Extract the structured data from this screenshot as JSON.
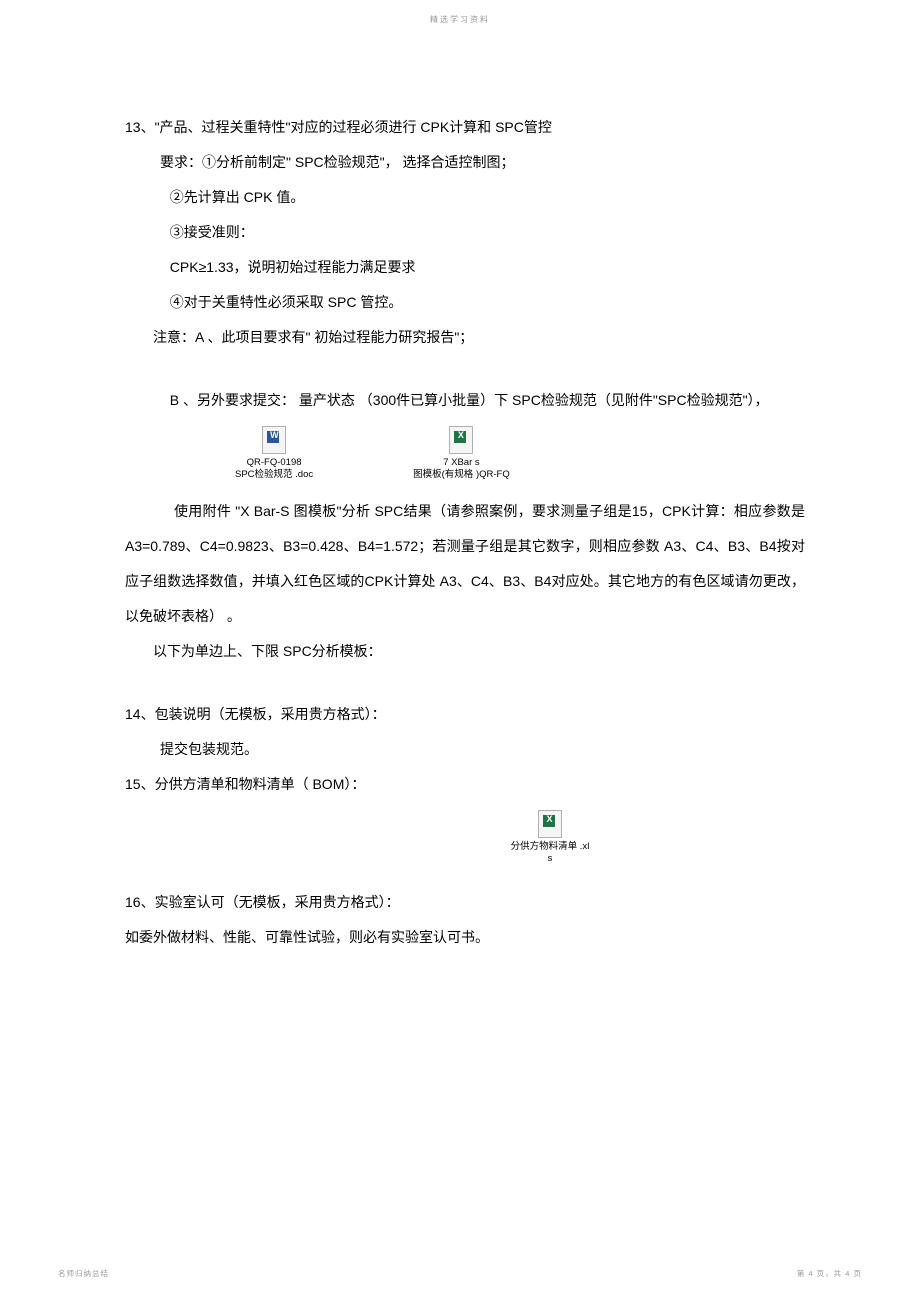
{
  "header": {
    "title": "精选学习资料"
  },
  "section13": {
    "heading": "13、\"产品、过程关重特性\"对应的过程必须进行    CPK计算和 SPC管控",
    "req1": "要求：①分析前制定\" SPC检验规范\"， 选择合适控制图；",
    "req2": "②先计算出 CPK  值。",
    "req3": "③接受准则：",
    "cpk": "CPK≥1.33，说明初始过程能力满足要求",
    "req4": "④对于关重特性必须采取  SPC 管控。",
    "noteA": "注意：A 、此项目要求有\"   初始过程能力研究报告\"；",
    "noteB": "B 、另外要求提交：  量产状态 （300件已算小批量）下  SPC检验规范（见附件\"SPC检验规范\"），",
    "attach1_line1": "QR-FQ-0198",
    "attach1_line2": "SPC检验规范 .doc",
    "attach2_line1": "7 XBar s",
    "attach2_line2": "图模板(有规格 )QR-FQ",
    "body1": "使用附件   \"X Bar-S  图模板\"分析 SPC结果（请参照案例，要求测量子组是15，CPK计算：相应参数是 A3=0.789、C4=0.9823、B3=0.428、B4=1.572；若测量子组是其它数字，则相应参数  A3、C4、B3、B4按对应子组数选择数值，并填入红色区域的CPK计算处 A3、C4、B3、B4对应处。其它地方的有色区域请勿更改，   以免破坏表格） 。",
    "body2": "以下为单边上、下限  SPC分析模板："
  },
  "section14": {
    "heading": "14、包装说明（无模板，采用贵方格式）：",
    "body": "提交包装规范。"
  },
  "section15": {
    "heading": "15、分供方清单和物料清单（   BOM）：",
    "attach_line1": "分供方物料清单 .xl",
    "attach_line2": "s"
  },
  "section16": {
    "heading": "16、实验室认可（无模板，采用贵方格式）：",
    "body": "如委外做材料、性能、可靠性试验，则必有实验室认可书。"
  },
  "footer": {
    "left": "名师归纳总结",
    "right": "第 4 页，共 4 页"
  },
  "colors": {
    "text": "#000000",
    "header_text": "#999999",
    "footer_text": "#999999",
    "background": "#ffffff",
    "doc_icon": "#2b579a",
    "xls_icon": "#217346"
  },
  "typography": {
    "body_fontsize": 14,
    "attachment_fontsize": 9.5,
    "footer_fontsize": 7.5,
    "line_height": 2.5
  }
}
